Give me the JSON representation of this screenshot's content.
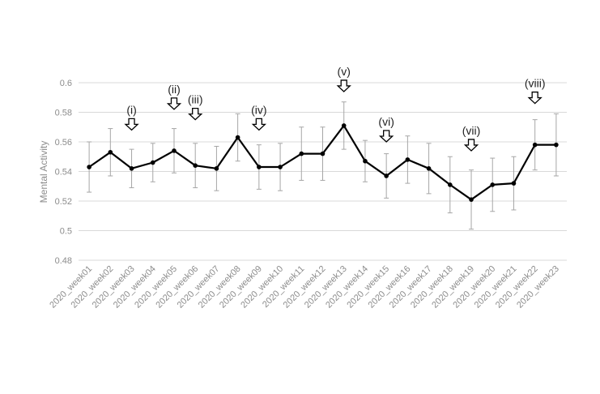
{
  "chart_data": {
    "type": "line",
    "title": "",
    "xlabel": "",
    "ylabel": "Mental Activity",
    "ylim": [
      0.48,
      0.6
    ],
    "yticks": [
      "0.48",
      "0.5",
      "0.52",
      "0.54",
      "0.56",
      "0.58",
      "0.6"
    ],
    "grid": true,
    "legend": "none",
    "categories": [
      "2020_week01",
      "2020_week02",
      "2020_week03",
      "2020_week04",
      "2020_week05",
      "2020_week06",
      "2020_week07",
      "2020_week08",
      "2020_week09",
      "2020_week10",
      "2020_week11",
      "2020_week12",
      "2020_week13",
      "2020_week14",
      "2020_week15",
      "2020_week16",
      "2020_week17",
      "2020_week18",
      "2020_week19",
      "2020_week20",
      "2020_week21",
      "2020_week22",
      "2020_week23"
    ],
    "series": [
      {
        "values": [
          0.543,
          0.553,
          0.542,
          0.546,
          0.554,
          0.544,
          0.542,
          0.563,
          0.543,
          0.543,
          0.552,
          0.552,
          0.571,
          0.547,
          0.537,
          0.548,
          0.542,
          0.531,
          0.521,
          0.531,
          0.532,
          0.558,
          0.558
        ],
        "error": [
          0.017,
          0.016,
          0.013,
          0.013,
          0.015,
          0.015,
          0.015,
          0.016,
          0.015,
          0.016,
          0.018,
          0.018,
          0.016,
          0.014,
          0.015,
          0.016,
          0.017,
          0.019,
          0.02,
          0.018,
          0.018,
          0.017,
          0.021
        ],
        "color": "#000000"
      }
    ],
    "annotations": [
      {
        "label": "(i)",
        "category": "2020_week03",
        "y": 0.568
      },
      {
        "label": "(ii)",
        "category": "2020_week05",
        "y": 0.582
      },
      {
        "label": "(iii)",
        "category": "2020_week06",
        "y": 0.575
      },
      {
        "label": "(iv)",
        "category": "2020_week09",
        "y": 0.568
      },
      {
        "label": "(v)",
        "category": "2020_week13",
        "y": 0.594
      },
      {
        "label": "(vi)",
        "category": "2020_week15",
        "y": 0.56
      },
      {
        "label": "(vii)",
        "category": "2020_week19",
        "y": 0.554
      },
      {
        "label": "(viii)",
        "category": "2020_week22",
        "y": 0.586
      }
    ],
    "colors": {
      "line": "#000000",
      "error_bar": "#a6a6a6",
      "grid": "#d9d9d9",
      "text": "#8c8c8c",
      "arrow": "#000000"
    }
  }
}
